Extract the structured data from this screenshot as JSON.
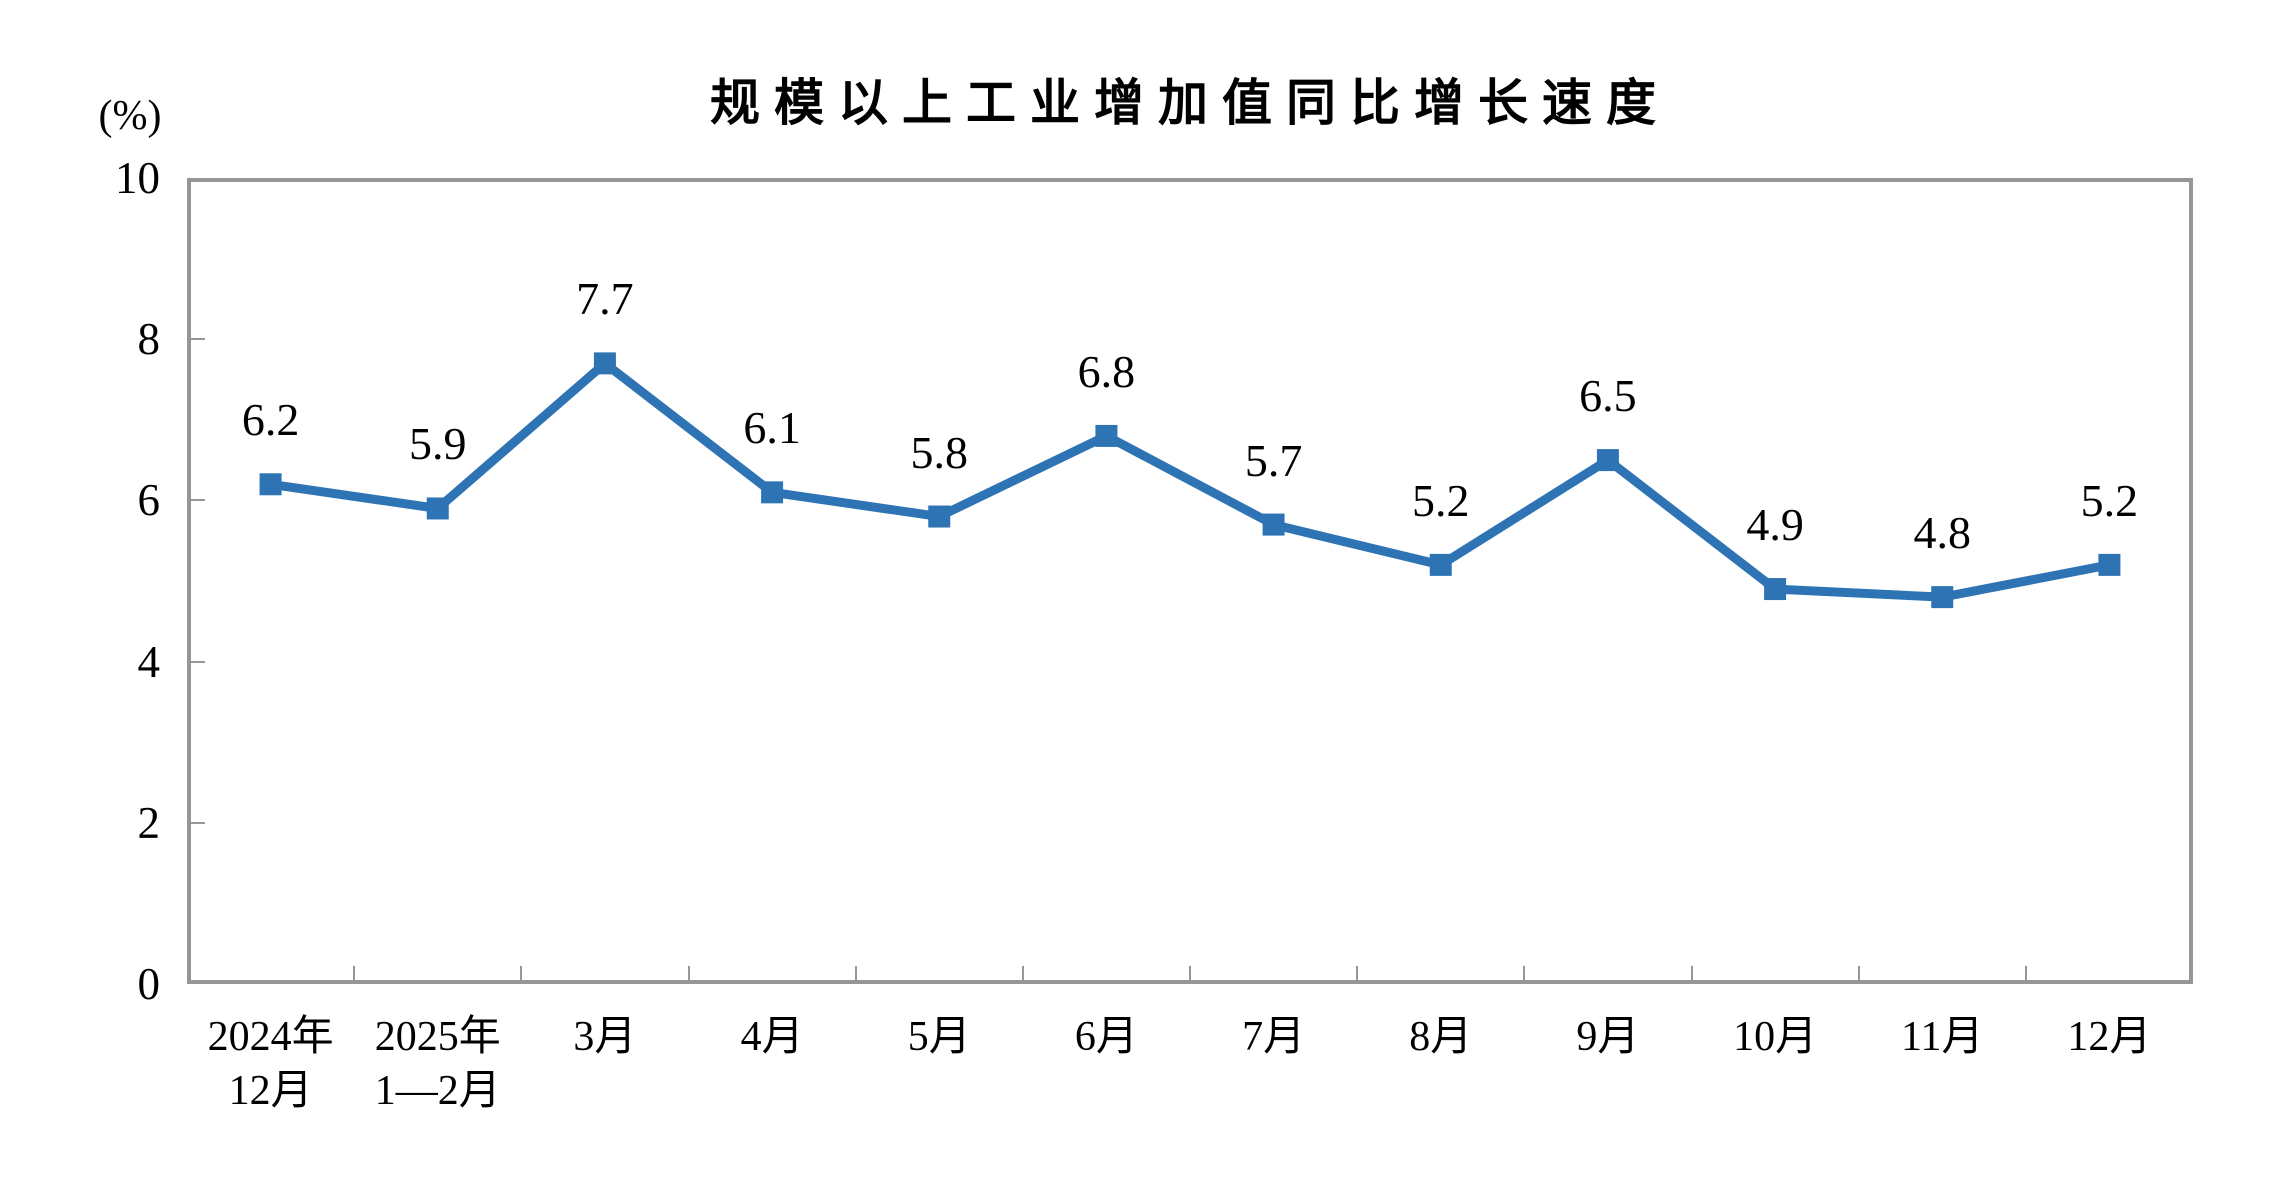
{
  "chart_data": {
    "type": "line",
    "title": "规模以上工业增加值同比增长速度",
    "ylabel": "(%)",
    "xlabel": "",
    "categories": [
      [
        "2024年",
        "12月"
      ],
      [
        "2025年",
        "1—2月"
      ],
      [
        "3月"
      ],
      [
        "4月"
      ],
      [
        "5月"
      ],
      [
        "6月"
      ],
      [
        "7月"
      ],
      [
        "8月"
      ],
      [
        "9月"
      ],
      [
        "10月"
      ],
      [
        "11月"
      ],
      [
        "12月"
      ]
    ],
    "series": [
      {
        "name": "规模以上工业增加值同比增长速度",
        "values": [
          6.2,
          5.9,
          7.7,
          6.1,
          5.8,
          6.8,
          5.7,
          5.2,
          6.5,
          4.9,
          4.8,
          5.2
        ],
        "data_labels": [
          "6.2",
          "5.9",
          "7.7",
          "6.1",
          "5.8",
          "6.8",
          "5.7",
          "5.2",
          "6.5",
          "4.9",
          "4.8",
          "5.2"
        ]
      }
    ],
    "ylim": [
      0,
      10
    ],
    "yticks": [
      0,
      2,
      4,
      6,
      8,
      10
    ],
    "grid": false,
    "legend": "none",
    "line_color": "#2E74B5",
    "marker": "square",
    "axis_color": "#969696"
  }
}
